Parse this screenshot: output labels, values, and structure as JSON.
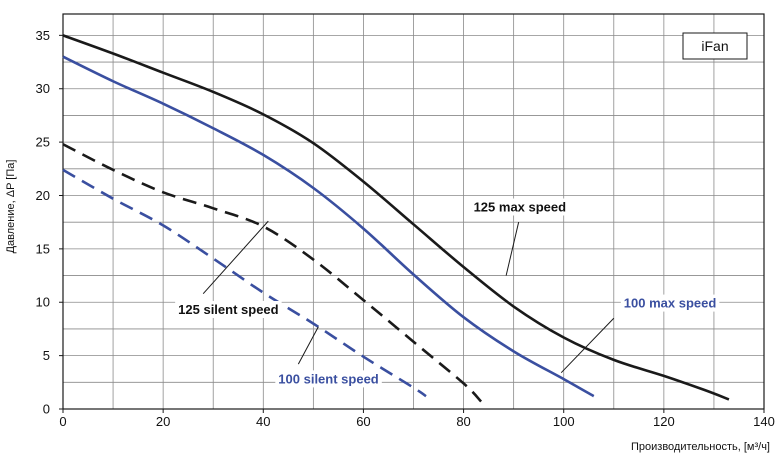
{
  "chart_data": {
    "type": "line",
    "title": "",
    "xlabel": "Производительность, [м³/ч]",
    "ylabel": "Давление, ΔP [Па]",
    "xlim": [
      0,
      140
    ],
    "ylim": [
      0,
      37
    ],
    "x_ticks": [
      0,
      20,
      40,
      60,
      80,
      100,
      120,
      140
    ],
    "y_ticks": [
      0,
      5,
      10,
      15,
      20,
      25,
      30,
      35
    ],
    "x_tick_labels": [
      "0",
      "20",
      "40",
      "60",
      "80",
      "100",
      "120",
      "140"
    ],
    "y_tick_labels": [
      "0",
      "5",
      "10",
      "15",
      "20",
      "25",
      "30",
      "35"
    ],
    "grid": {
      "x_minor_step": 10,
      "y_step": 2.5
    },
    "legend_text": "iFan",
    "legend_placement": "top-right",
    "series": [
      {
        "name": "125 max speed",
        "color": "#1a1a1a",
        "style": "solid",
        "label_color": "#111111",
        "points": [
          [
            0,
            35
          ],
          [
            10,
            33.3
          ],
          [
            20,
            31.5
          ],
          [
            30,
            29.7
          ],
          [
            40,
            27.6
          ],
          [
            50,
            24.9
          ],
          [
            60,
            21.3
          ],
          [
            70,
            17.3
          ],
          [
            80,
            13.3
          ],
          [
            90,
            9.6
          ],
          [
            100,
            6.7
          ],
          [
            110,
            4.6
          ],
          [
            120,
            3.1
          ],
          [
            128,
            1.8
          ],
          [
            133,
            0.9
          ]
        ],
        "label_at": [
          82,
          18.5
        ],
        "pointer_from": [
          91,
          17.5
        ],
        "pointer_to": [
          88.5,
          12.5
        ]
      },
      {
        "name": "100 max speed",
        "color": "#3a4fa0",
        "style": "solid",
        "label_color": "#3a4fa0",
        "points": [
          [
            0,
            33
          ],
          [
            10,
            30.7
          ],
          [
            20,
            28.6
          ],
          [
            30,
            26.3
          ],
          [
            40,
            23.8
          ],
          [
            50,
            20.7
          ],
          [
            60,
            16.9
          ],
          [
            70,
            12.6
          ],
          [
            80,
            8.6
          ],
          [
            90,
            5.4
          ],
          [
            100,
            2.8
          ],
          [
            106,
            1.2
          ]
        ],
        "label_at": [
          112,
          9.5
        ],
        "pointer_from": [
          110,
          8.5
        ],
        "pointer_to": [
          99.5,
          3.4
        ]
      },
      {
        "name": "125 silent speed",
        "color": "#1a1a1a",
        "style": "dashed",
        "label_color": "#111111",
        "points": [
          [
            0,
            24.8
          ],
          [
            10,
            22.4
          ],
          [
            20,
            20.3
          ],
          [
            30,
            18.8
          ],
          [
            40,
            17.1
          ],
          [
            50,
            14.0
          ],
          [
            60,
            10.2
          ],
          [
            70,
            6.3
          ],
          [
            80,
            2.4
          ],
          [
            83.5,
            0.7
          ]
        ],
        "label_at": [
          23,
          8.9
        ],
        "pointer_from": [
          28,
          10.8
        ],
        "pointer_to": [
          41,
          17.6
        ]
      },
      {
        "name": "100 silent speed",
        "color": "#3a4fa0",
        "style": "dashed",
        "label_color": "#3a4fa0",
        "points": [
          [
            0,
            22.4
          ],
          [
            10,
            19.7
          ],
          [
            20,
            17.2
          ],
          [
            30,
            14.1
          ],
          [
            40,
            10.9
          ],
          [
            50,
            8.0
          ],
          [
            60,
            4.9
          ],
          [
            70,
            2.0
          ],
          [
            72.5,
            1.2
          ]
        ],
        "label_at": [
          43,
          2.4
        ],
        "pointer_from": [
          47,
          4.2
        ],
        "pointer_to": [
          51,
          7.7
        ]
      }
    ]
  }
}
